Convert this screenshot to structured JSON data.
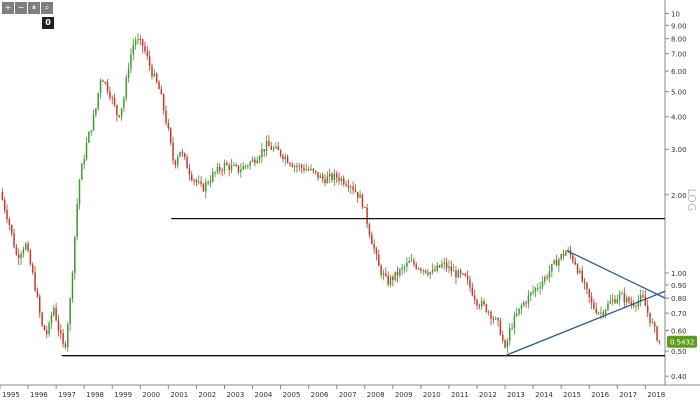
{
  "toolbar": {
    "buttons": [
      {
        "name": "plus",
        "glyph": "+"
      },
      {
        "name": "minus",
        "glyph": "−"
      },
      {
        "name": "pause",
        "glyph": "⏸"
      },
      {
        "name": "search",
        "glyph": "⌕"
      }
    ],
    "badge": "0"
  },
  "colors": {
    "up": "#3d9a2c",
    "down": "#c0392b",
    "trendline": "#2d5b88",
    "support": "#111111",
    "axis": "#888888",
    "grid": "#e6e6e6",
    "last_price_bg": "#5e9c1a"
  },
  "chart_data": {
    "type": "candlestick",
    "title": "",
    "xlabel": "",
    "ylabel": "",
    "y_scale": "log",
    "y_label_vertical": "LOG",
    "ylim": [
      0.37,
      10.5
    ],
    "xlim": [
      1995.0,
      2018.7
    ],
    "y_ticks": [
      {
        "v": 0.4,
        "label": "0.40"
      },
      {
        "v": 0.5,
        "label": "0.50"
      },
      {
        "v": 0.6,
        "label": "0.60"
      },
      {
        "v": 0.7,
        "label": "0.70"
      },
      {
        "v": 0.8,
        "label": "0.80"
      },
      {
        "v": 0.9,
        "label": "0.90"
      },
      {
        "v": 1.0,
        "label": "1.00"
      },
      {
        "v": 2.0,
        "label": "2.00"
      },
      {
        "v": 3.0,
        "label": "3.00"
      },
      {
        "v": 4.0,
        "label": "4.00"
      },
      {
        "v": 5.0,
        "label": "5.00"
      },
      {
        "v": 6.0,
        "label": "6.00"
      },
      {
        "v": 7.0,
        "label": "7.00"
      },
      {
        "v": 8.0,
        "label": "8.00"
      },
      {
        "v": 9.0,
        "label": "9.00"
      },
      {
        "v": 10.0,
        "label": "10"
      }
    ],
    "x_ticks": [
      "1995",
      "1996",
      "1997",
      "1998",
      "1999",
      "2000",
      "2001",
      "2002",
      "2003",
      "2004",
      "2005",
      "2006",
      "2007",
      "2008",
      "2009",
      "2010",
      "2011",
      "2012",
      "2013",
      "2014",
      "2015",
      "2016",
      "2017",
      "2018"
    ],
    "price_path": [
      [
        1995.0,
        2.05
      ],
      [
        1995.3,
        1.6
      ],
      [
        1995.6,
        1.15
      ],
      [
        1995.9,
        1.3
      ],
      [
        1996.2,
        0.95
      ],
      [
        1996.5,
        0.62
      ],
      [
        1996.7,
        0.58
      ],
      [
        1996.9,
        0.75
      ],
      [
        1997.1,
        0.6
      ],
      [
        1997.3,
        0.5
      ],
      [
        1997.5,
        0.78
      ],
      [
        1997.8,
        2.2
      ],
      [
        1998.1,
        3.2
      ],
      [
        1998.4,
        4.2
      ],
      [
        1998.6,
        5.8
      ],
      [
        1998.9,
        5.0
      ],
      [
        1999.2,
        4.0
      ],
      [
        1999.4,
        4.6
      ],
      [
        1999.6,
        6.5
      ],
      [
        1999.8,
        8.0
      ],
      [
        2000.1,
        7.5
      ],
      [
        2000.4,
        6.0
      ],
      [
        2000.7,
        5.0
      ],
      [
        2001.0,
        3.5
      ],
      [
        2001.2,
        2.6
      ],
      [
        2001.4,
        3.0
      ],
      [
        2001.8,
        2.4
      ],
      [
        2002.2,
        2.1
      ],
      [
        2002.6,
        2.4
      ],
      [
        2003.0,
        2.6
      ],
      [
        2003.5,
        2.5
      ],
      [
        2004.0,
        2.7
      ],
      [
        2004.5,
        3.1
      ],
      [
        2005.0,
        2.9
      ],
      [
        2005.5,
        2.6
      ],
      [
        2006.0,
        2.5
      ],
      [
        2006.5,
        2.3
      ],
      [
        2007.0,
        2.35
      ],
      [
        2007.5,
        2.2
      ],
      [
        2007.9,
        1.9
      ],
      [
        2008.2,
        1.4
      ],
      [
        2008.5,
        1.05
      ],
      [
        2008.8,
        0.92
      ],
      [
        2009.2,
        1.0
      ],
      [
        2009.6,
        1.1
      ],
      [
        2010.0,
        1.05
      ],
      [
        2010.4,
        1.0
      ],
      [
        2010.8,
        1.08
      ],
      [
        2011.2,
        1.0
      ],
      [
        2011.6,
        0.95
      ],
      [
        2012.0,
        0.78
      ],
      [
        2012.4,
        0.72
      ],
      [
        2012.8,
        0.62
      ],
      [
        2013.0,
        0.5
      ],
      [
        2013.2,
        0.62
      ],
      [
        2013.6,
        0.75
      ],
      [
        2014.0,
        0.85
      ],
      [
        2014.4,
        0.95
      ],
      [
        2014.8,
        1.1
      ],
      [
        2015.2,
        1.22
      ],
      [
        2015.5,
        1.1
      ],
      [
        2015.8,
        0.9
      ],
      [
        2016.1,
        0.75
      ],
      [
        2016.4,
        0.7
      ],
      [
        2016.8,
        0.78
      ],
      [
        2017.1,
        0.82
      ],
      [
        2017.5,
        0.76
      ],
      [
        2017.9,
        0.8
      ],
      [
        2018.2,
        0.65
      ],
      [
        2018.5,
        0.54
      ]
    ],
    "candles_per_year": 12,
    "overlays": {
      "support_high": {
        "from_x": 2001.1,
        "to_x": 2018.7,
        "y": 1.62
      },
      "support_low": {
        "from_x": 1997.2,
        "to_x": 2018.7,
        "y": 0.48
      },
      "resistance_trend": {
        "x1": 2015.2,
        "y1": 1.22,
        "x2": 2018.7,
        "y2": 0.8
      },
      "support_trend": {
        "x1": 2013.0,
        "y1": 0.48,
        "x2": 2018.7,
        "y2": 0.85
      }
    },
    "last_price": {
      "value": 0.5432,
      "label": "0.5432"
    }
  }
}
